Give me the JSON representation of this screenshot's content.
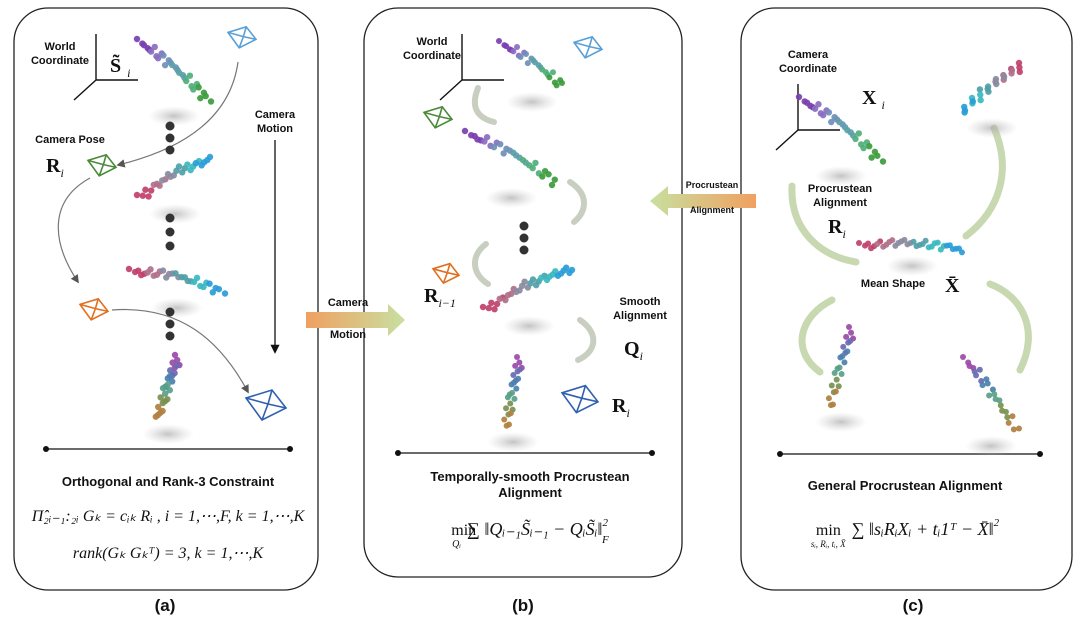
{
  "panel_a": {
    "world_coordinate": [
      "World",
      "Coordinate"
    ],
    "shape_label": {
      "base": "S̃",
      "sub": "i"
    },
    "camera_pose": "Camera Pose",
    "rotation_label": {
      "base": "R",
      "sub": "i"
    },
    "camera_motion": [
      "Camera",
      "Motion"
    ],
    "caption": "Orthogonal  and Rank-3 Constraint",
    "formula_1": "Π̂₂ᵢ₋₁:₂ᵢ Gₖ = cᵢₖ Rᵢ , i = 1,⋯,F, k = 1,⋯,K",
    "formula_2": "rank(Gₖ Gₖᵀ) = 3, k = 1,⋯,K",
    "label": "(a)"
  },
  "panel_b": {
    "world_coordinate": [
      "World",
      "Coordinate"
    ],
    "prev_rotation_label": {
      "base": "R",
      "sub": "i−1"
    },
    "smooth_alignment": [
      "Smooth",
      "Alignment"
    ],
    "q_label": {
      "base": "Q",
      "sub": "i"
    },
    "rotation_label": {
      "base": "R",
      "sub": "i"
    },
    "caption": [
      "Temporally-smooth Procrustean",
      "Alignment"
    ],
    "formula": {
      "op": "min",
      "sub": "Qᵢ",
      "body": "∑ ‖Qᵢ₋₁S̃ᵢ₋₁ − QᵢS̃ᵢ‖",
      "sup": "2",
      "norm_sub": "F"
    },
    "label": "(b)"
  },
  "panel_c": {
    "camera_coordinate": [
      "Camera",
      "Coordinate"
    ],
    "shape_label": {
      "base": "X",
      "sub": "i"
    },
    "procrustean_alignment": [
      "Procrustean",
      "Alignment"
    ],
    "rotation_label": {
      "base": "R",
      "sub": "i"
    },
    "mean_shape": "Mean Shape",
    "mean_symbol": "X̄",
    "caption": "General Procrustean Alignment",
    "formula": {
      "op": "min",
      "sub": "sᵢ, Rᵢ, tᵢ, X̄",
      "body": "∑ ‖sᵢRᵢXᵢ + tᵢ1ᵀ − X̄‖",
      "sup": "2"
    },
    "label": "(c)"
  },
  "connector_ab": [
    "Camera",
    "Motion"
  ],
  "connector_bc": [
    "Procrustean",
    "Alignment"
  ]
}
